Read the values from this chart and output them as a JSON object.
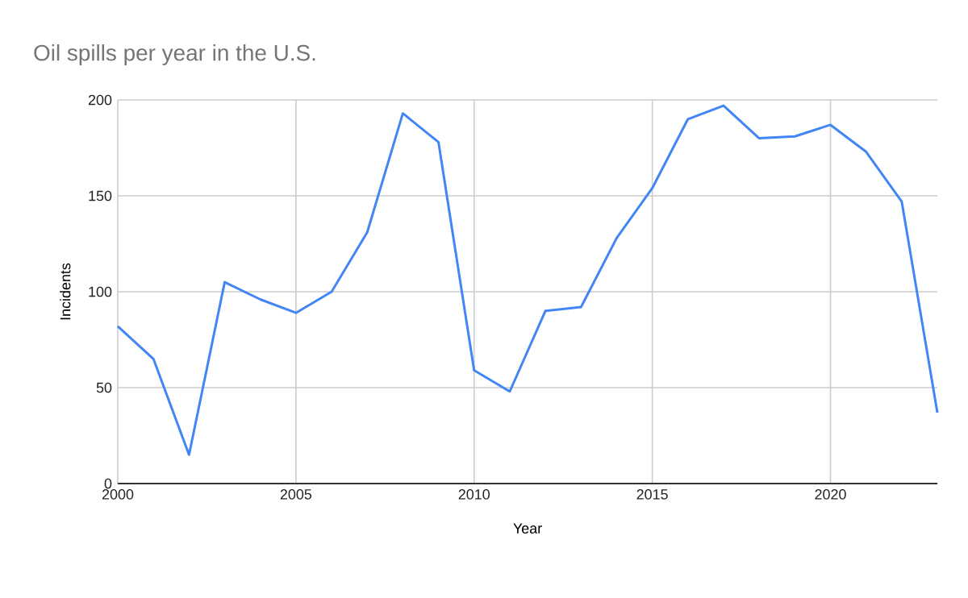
{
  "chart_data": {
    "type": "line",
    "title": "Oil spills per year in the U.S.",
    "xlabel": "Year",
    "ylabel": "Incidents",
    "x": [
      2000,
      2001,
      2002,
      2003,
      2004,
      2005,
      2006,
      2007,
      2008,
      2009,
      2010,
      2011,
      2012,
      2013,
      2014,
      2015,
      2016,
      2017,
      2018,
      2019,
      2020,
      2021,
      2022,
      2023
    ],
    "series": [
      {
        "color": "#4285f4",
        "values": [
          82,
          65,
          15,
          105,
          96,
          89,
          100,
          131,
          193,
          178,
          59,
          48,
          90,
          92,
          128,
          154,
          190,
          197,
          180,
          181,
          187,
          173,
          147,
          37
        ]
      }
    ],
    "xlim": [
      2000,
      2023
    ],
    "xticks": [
      2000,
      2005,
      2010,
      2015,
      2020
    ],
    "ylim": [
      0,
      200
    ],
    "yticks": [
      0,
      50,
      100,
      150,
      200
    ],
    "grid": true,
    "marker": "none",
    "line_style": "solid"
  }
}
